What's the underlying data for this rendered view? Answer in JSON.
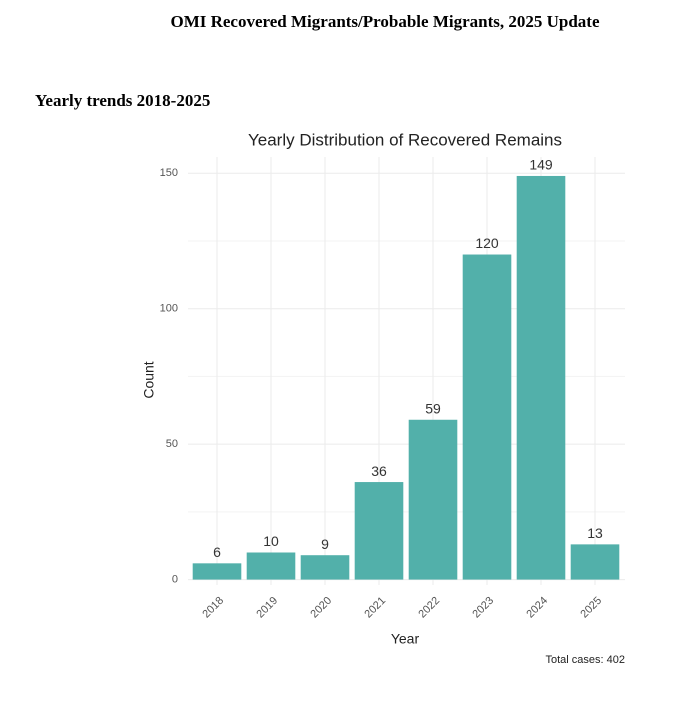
{
  "header": {
    "title": "OMI Recovered Migrants/Probable Migrants, 2025 Update"
  },
  "section": {
    "heading": "Yearly trends 2018-2025"
  },
  "chart_data": {
    "type": "bar",
    "title": "Yearly Distribution of Recovered Remains",
    "x_label": "Year",
    "y_label": "Count",
    "caption": "Total cases: 402",
    "categories": [
      "2018",
      "2019",
      "2020",
      "2021",
      "2022",
      "2023",
      "2024",
      "2025"
    ],
    "values": [
      6,
      10,
      9,
      36,
      59,
      120,
      149,
      13
    ],
    "color": "#52b0aa",
    "ylim": [
      -2,
      156
    ],
    "yticks": [
      0,
      50,
      100,
      150
    ],
    "minor_yticks": [
      25,
      75,
      125
    ],
    "grid": true
  }
}
